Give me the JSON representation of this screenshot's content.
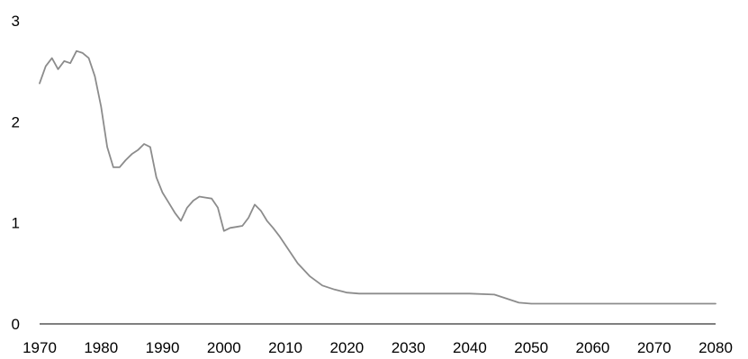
{
  "chart_data": {
    "type": "line",
    "title": "",
    "xlabel": "",
    "ylabel": "",
    "xlim": [
      1970,
      2080
    ],
    "ylim": [
      0,
      3
    ],
    "x_ticks": [
      1970,
      1980,
      1990,
      2000,
      2010,
      2020,
      2030,
      2040,
      2050,
      2060,
      2070,
      2080
    ],
    "y_ticks": [
      0,
      1,
      2,
      3
    ],
    "grid": false,
    "line_color": "#8c8c8c",
    "series": [
      {
        "x": [
          1970,
          1971,
          1972,
          1973,
          1974,
          1975,
          1976,
          1977,
          1978,
          1979,
          1980,
          1981,
          1982,
          1983,
          1984,
          1985,
          1986,
          1987,
          1988,
          1989,
          1990,
          1991,
          1992,
          1993,
          1994,
          1995,
          1996,
          1997,
          1998,
          1999,
          2000,
          2001,
          2002,
          2003,
          2004,
          2005,
          2006,
          2007,
          2008,
          2009,
          2010,
          2012,
          2014,
          2016,
          2018,
          2020,
          2022,
          2025,
          2030,
          2035,
          2040,
          2044,
          2046,
          2048,
          2050,
          2055,
          2060,
          2065,
          2070,
          2075,
          2080
        ],
        "y": [
          2.38,
          2.55,
          2.63,
          2.52,
          2.6,
          2.58,
          2.7,
          2.68,
          2.63,
          2.45,
          2.15,
          1.75,
          1.55,
          1.55,
          1.62,
          1.68,
          1.72,
          1.78,
          1.75,
          1.45,
          1.3,
          1.2,
          1.1,
          1.02,
          1.15,
          1.22,
          1.26,
          1.25,
          1.24,
          1.15,
          0.92,
          0.95,
          0.96,
          0.97,
          1.05,
          1.18,
          1.12,
          1.02,
          0.95,
          0.87,
          0.78,
          0.6,
          0.47,
          0.38,
          0.34,
          0.31,
          0.3,
          0.3,
          0.3,
          0.3,
          0.3,
          0.29,
          0.25,
          0.21,
          0.2,
          0.2,
          0.2,
          0.2,
          0.2,
          0.2,
          0.2
        ]
      }
    ]
  }
}
